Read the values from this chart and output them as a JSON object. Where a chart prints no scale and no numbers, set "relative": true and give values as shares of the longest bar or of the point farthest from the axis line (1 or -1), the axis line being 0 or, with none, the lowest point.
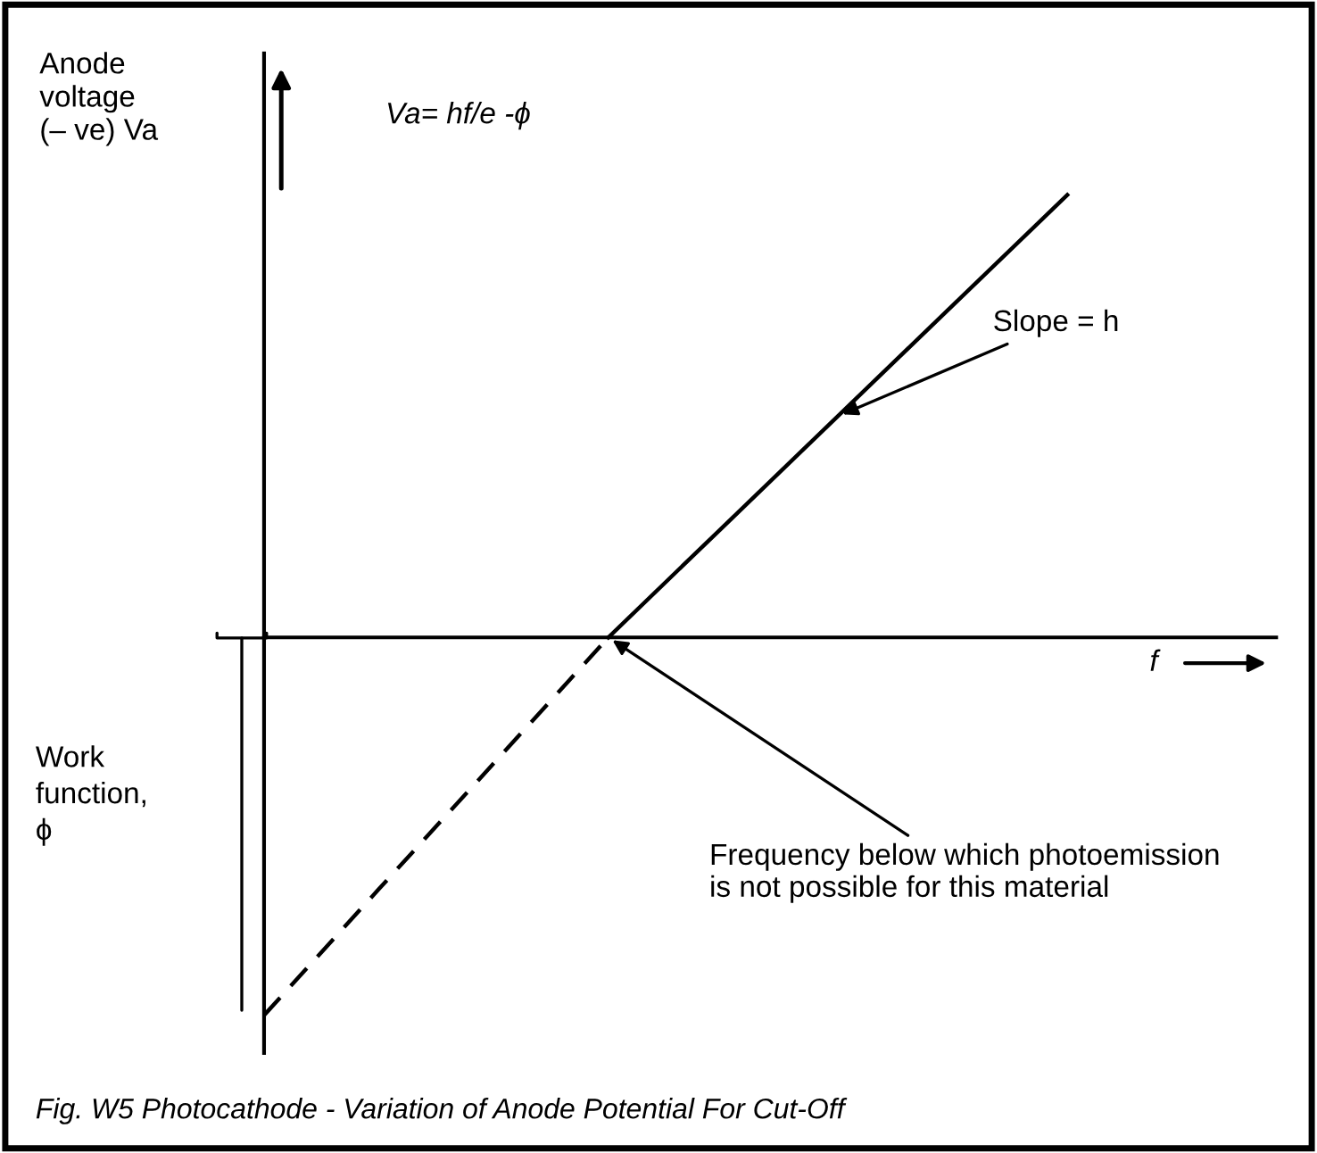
{
  "chart_data": {
    "type": "line",
    "relative": true,
    "ylabel": "Anode\nvoltage\n(– ve) Va",
    "xlabel": "f",
    "categories": [
      null,
      null,
      null,
      null,
      null,
      null,
      null,
      null
    ],
    "series": [
      {
        "color": "#000000",
        "line_style": "dashed",
        "values": [
          -0.854,
          -0.569,
          -0.285,
          0,
          null,
          null,
          null,
          null
        ]
      },
      {
        "color": "#000000",
        "line_style": "solid",
        "values": [
          null,
          null,
          null,
          0,
          0.25,
          0.5,
          0.75,
          1
        ]
      }
    ],
    "annotations": [
      "Va= hf/e -ϕ",
      "Slope = h",
      "Frequency below which photoemission\nis not possible for this material",
      "Work\nfunction,\nϕ",
      "Fig. W5 Photocathode - Variation of Anode Potential For Cut-Off"
    ],
    "marker": "none"
  }
}
